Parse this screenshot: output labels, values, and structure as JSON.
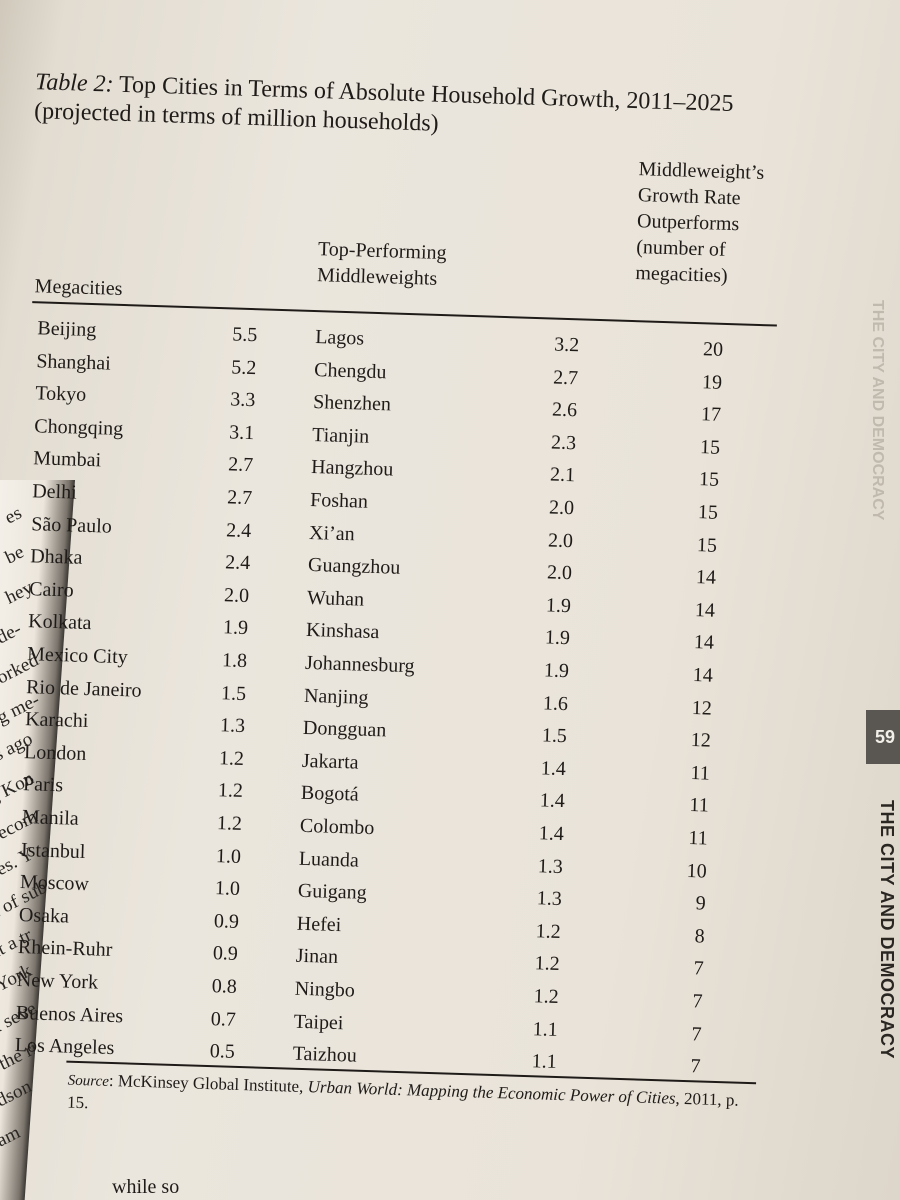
{
  "table": {
    "title_label": "Table 2:",
    "title_text": "Top Cities in Terms of Absolute Household Growth, 2011–2025",
    "subtitle": "(projected in terms of million households)",
    "headers": {
      "megacities": "Megacities",
      "middleweights_line1": "Top-Performing",
      "middleweights_line2": "Middleweights",
      "outperforms_lines": [
        "Middleweight’s",
        "Growth Rate",
        "Outperforms",
        "(number of",
        "megacities)"
      ]
    },
    "rows": [
      {
        "megacity": "Beijing",
        "megacity_value": "5.5",
        "middleweight": "Lagos",
        "middleweight_value": "3.2",
        "outperforms": "20"
      },
      {
        "megacity": "Shanghai",
        "megacity_value": "5.2",
        "middleweight": "Chengdu",
        "middleweight_value": "2.7",
        "outperforms": "19"
      },
      {
        "megacity": "Tokyo",
        "megacity_value": "3.3",
        "middleweight": "Shenzhen",
        "middleweight_value": "2.6",
        "outperforms": "17"
      },
      {
        "megacity": "Chongqing",
        "megacity_value": "3.1",
        "middleweight": "Tianjin",
        "middleweight_value": "2.3",
        "outperforms": "15"
      },
      {
        "megacity": "Mumbai",
        "megacity_value": "2.7",
        "middleweight": "Hangzhou",
        "middleweight_value": "2.1",
        "outperforms": "15"
      },
      {
        "megacity": "Delhi",
        "megacity_value": "2.7",
        "middleweight": "Foshan",
        "middleweight_value": "2.0",
        "outperforms": "15"
      },
      {
        "megacity": "São Paulo",
        "megacity_value": "2.4",
        "middleweight": "Xi’an",
        "middleweight_value": "2.0",
        "outperforms": "15"
      },
      {
        "megacity": "Dhaka",
        "megacity_value": "2.4",
        "middleweight": "Guangzhou",
        "middleweight_value": "2.0",
        "outperforms": "14"
      },
      {
        "megacity": "Cairo",
        "megacity_value": "2.0",
        "middleweight": "Wuhan",
        "middleweight_value": "1.9",
        "outperforms": "14"
      },
      {
        "megacity": "Kolkata",
        "megacity_value": "1.9",
        "middleweight": "Kinshasa",
        "middleweight_value": "1.9",
        "outperforms": "14"
      },
      {
        "megacity": "Mexico City",
        "megacity_value": "1.8",
        "middleweight": "Johannesburg",
        "middleweight_value": "1.9",
        "outperforms": "14"
      },
      {
        "megacity": "Rio de Janeiro",
        "megacity_value": "1.5",
        "middleweight": "Nanjing",
        "middleweight_value": "1.6",
        "outperforms": "12"
      },
      {
        "megacity": "Karachi",
        "megacity_value": "1.3",
        "middleweight": "Dongguan",
        "middleweight_value": "1.5",
        "outperforms": "12"
      },
      {
        "megacity": "London",
        "megacity_value": "1.2",
        "middleweight": "Jakarta",
        "middleweight_value": "1.4",
        "outperforms": "11"
      },
      {
        "megacity": "Paris",
        "megacity_value": "1.2",
        "middleweight": "Bogotá",
        "middleweight_value": "1.4",
        "outperforms": "11"
      },
      {
        "megacity": "Manila",
        "megacity_value": "1.2",
        "middleweight": "Colombo",
        "middleweight_value": "1.4",
        "outperforms": "11"
      },
      {
        "megacity": "Istanbul",
        "megacity_value": "1.0",
        "middleweight": "Luanda",
        "middleweight_value": "1.3",
        "outperforms": "10"
      },
      {
        "megacity": "Moscow",
        "megacity_value": "1.0",
        "middleweight": "Guigang",
        "middleweight_value": "1.3",
        "outperforms": "9"
      },
      {
        "megacity": "Osaka",
        "megacity_value": "0.9",
        "middleweight": "Hefei",
        "middleweight_value": "1.2",
        "outperforms": "8"
      },
      {
        "megacity": "Rhein-Ruhr",
        "megacity_value": "0.9",
        "middleweight": "Jinan",
        "middleweight_value": "1.2",
        "outperforms": "7"
      },
      {
        "megacity": "New York",
        "megacity_value": "0.8",
        "middleweight": "Ningbo",
        "middleweight_value": "1.2",
        "outperforms": "7"
      },
      {
        "megacity": "Buenos Aires",
        "megacity_value": "0.7",
        "middleweight": "Taipei",
        "middleweight_value": "1.1",
        "outperforms": "7"
      },
      {
        "megacity": "Los Angeles",
        "megacity_value": "0.5",
        "middleweight": "Taizhou",
        "middleweight_value": "1.1",
        "outperforms": "7"
      }
    ],
    "source": {
      "label": "Source",
      "text_before": ": McKinsey Global Institute, ",
      "work": "Urban World: Mapping the Economic Power of Cities",
      "text_after": ", 2011, p. 15."
    }
  },
  "margin": {
    "page_number": "59",
    "running_head": "THE CITY AND DEMOCRACY",
    "bleed_through": "THE CITY AND DEMOCRACY"
  },
  "left_page_fragments": [
    "es",
    "be",
    "hey",
    "de-",
    "orked",
    "g me-",
    "rs ago",
    "g Kon",
    "becom",
    "lises. Y",
    "on of sub",
    "out a tr",
    "ew York",
    "link seve",
    "t to the ri",
    "e Hudson",
    "d Cham"
  ],
  "bottom_fragment": "while so"
}
